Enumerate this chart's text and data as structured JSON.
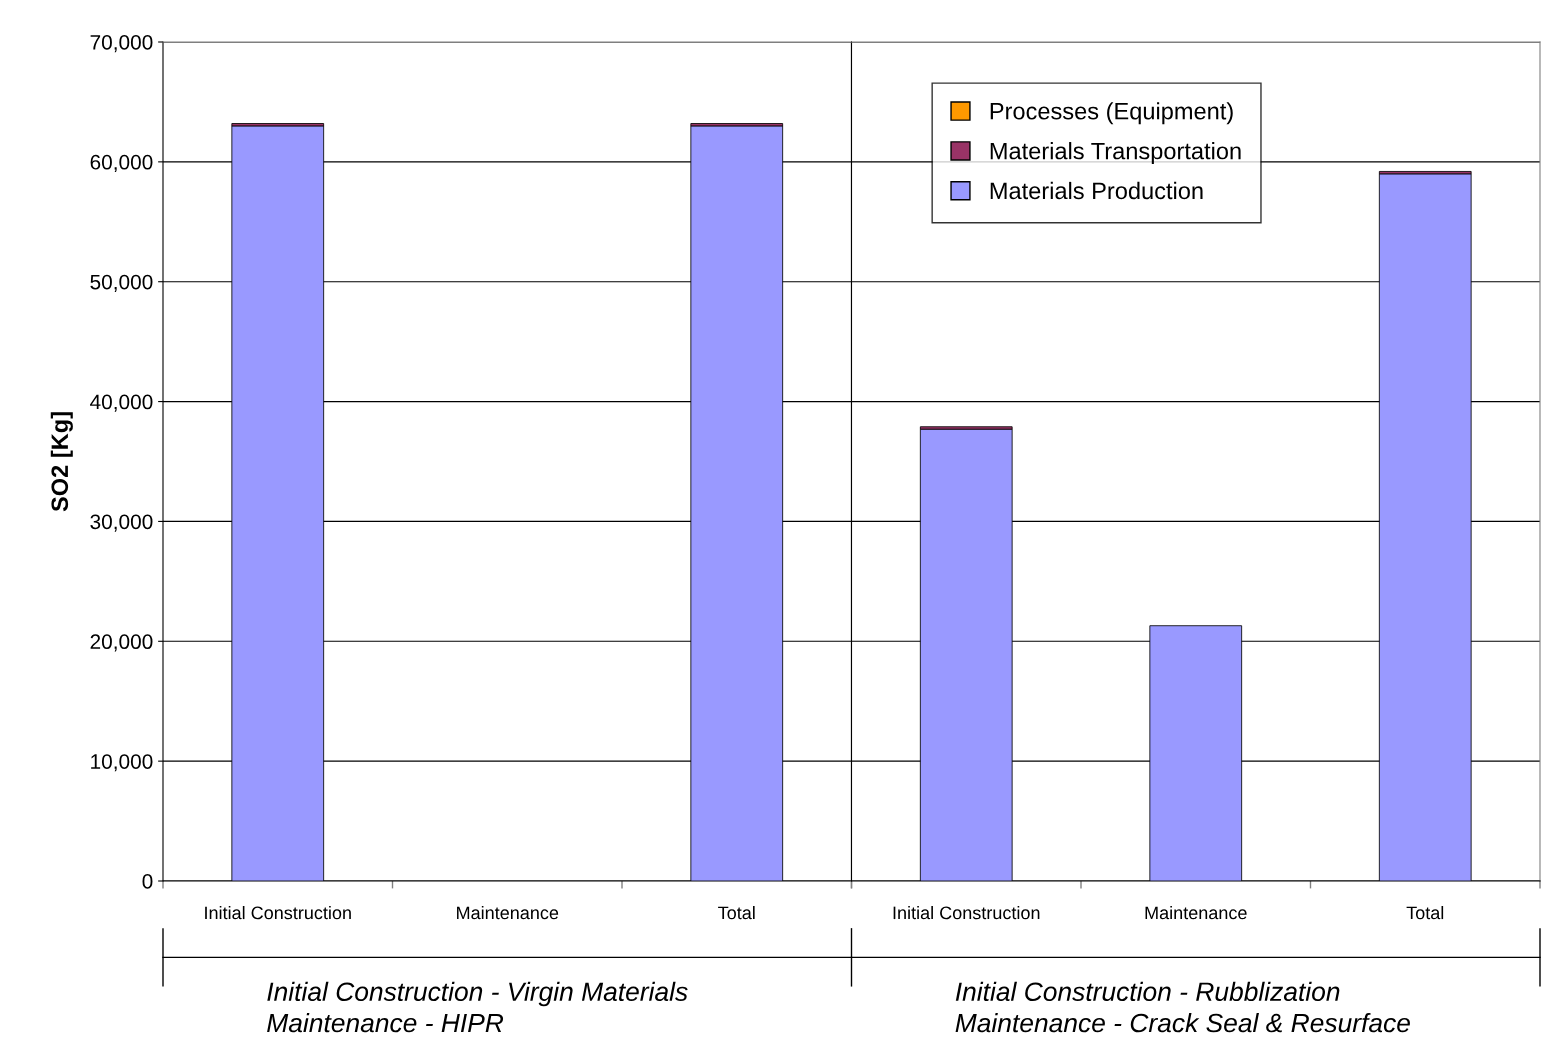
{
  "chart_data": [
    {
      "type": "bar",
      "stacked": true,
      "ylabel": "SO2 [Kg]",
      "categories": [
        "Initial Construction",
        "Maintenance",
        "Total"
      ],
      "series": [
        {
          "color": "#9999ff",
          "values": [
            63000,
            null,
            63000
          ]
        },
        {
          "color": "#993366",
          "values": [
            200,
            null,
            200
          ]
        }
      ],
      "ylim": [
        0,
        70000
      ],
      "yticks": [
        {
          "value": 0,
          "label": "0"
        },
        {
          "value": 10000,
          "label": "10,000"
        },
        {
          "value": 20000,
          "label": "20,000"
        },
        {
          "value": 30000,
          "label": "30,000"
        },
        {
          "value": 40000,
          "label": "40,000"
        },
        {
          "value": 50000,
          "label": "50,000"
        },
        {
          "value": 60000,
          "label": "60,000"
        },
        {
          "value": 70000,
          "label": "70,000"
        }
      ],
      "grid": "y",
      "annotations": [
        "Initial Construction - Virgin Materials\nMaintenance - HIPR"
      ]
    },
    {
      "type": "bar",
      "stacked": true,
      "categories": [
        "Initial Construction",
        "Maintenance",
        "Total"
      ],
      "series": [
        {
          "name": "Materials Production",
          "color": "#9999ff",
          "values": [
            37700,
            21300,
            59000
          ]
        },
        {
          "name": "Materials Transportation",
          "color": "#993366",
          "values": [
            200,
            null,
            200
          ]
        },
        {
          "name": "Processes (Equipment)",
          "color": "#ff9900",
          "values": [
            null,
            null,
            null
          ]
        }
      ],
      "ylim": [
        0,
        70000
      ],
      "yticks": [
        {
          "value": 0,
          "label": null
        },
        {
          "value": 10000,
          "label": null
        },
        {
          "value": 20000,
          "label": null
        },
        {
          "value": 30000,
          "label": null
        },
        {
          "value": 40000,
          "label": null
        },
        {
          "value": 50000,
          "label": null
        },
        {
          "value": 60000,
          "label": null
        },
        {
          "value": 70000,
          "label": null
        }
      ],
      "tick_labels": "x",
      "grid": "y",
      "legend": "top left",
      "annotations": [
        "Initial Construction - Rubblization\nMaintenance - Crack Seal & Resurface"
      ]
    }
  ]
}
